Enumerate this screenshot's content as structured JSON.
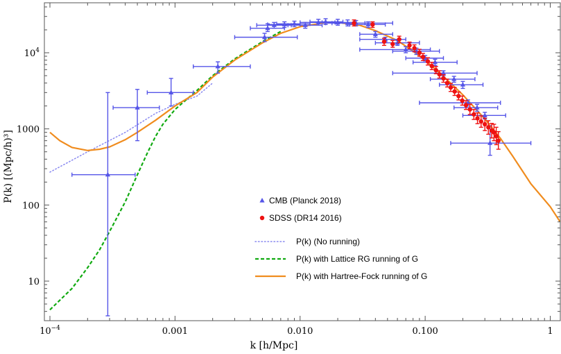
{
  "chart_data": {
    "type": "scatter",
    "xlabel": "k [h/Mpc]",
    "ylabel": "P(k) [(Mpc/h)³]",
    "xscale": "log",
    "yscale": "log",
    "xlim": [
      0.0001,
      1.2
    ],
    "ylim": [
      3.5,
      40000
    ],
    "x_ticks": [
      {
        "value": 0.0001,
        "base": "10",
        "exp": "−4"
      },
      {
        "value": 0.001,
        "label": "0.001"
      },
      {
        "value": 0.01,
        "label": "0.010"
      },
      {
        "value": 0.1,
        "label": "0.100"
      },
      {
        "value": 1,
        "label": "1"
      }
    ],
    "y_ticks": [
      {
        "value": 10,
        "label": "10"
      },
      {
        "value": 100,
        "label": "100"
      },
      {
        "value": 1000,
        "label": "1000"
      },
      {
        "value": 10000,
        "base": "10",
        "exp": "4"
      }
    ],
    "colors": {
      "cmb": "#5555e8",
      "sdss": "#ee1111",
      "no_running": "#8888f0",
      "lattice": "#11aa11",
      "hartree": "#f08c1e"
    },
    "series": [
      {
        "name": "CMB (Planck 2018)",
        "kind": "points",
        "marker": "triangle",
        "points": [
          {
            "k": 0.00029,
            "p": 250,
            "kl": 0.00015,
            "kh": 0.00048,
            "pl": 3.5,
            "ph": 3000
          },
          {
            "k": 0.0005,
            "p": 1900,
            "kl": 0.00032,
            "kh": 0.00075,
            "pl": 700,
            "ph": 3300
          },
          {
            "k": 0.00093,
            "p": 3000,
            "kl": 0.0006,
            "kh": 0.0014,
            "pl": 2000,
            "ph": 4600
          },
          {
            "k": 0.0022,
            "p": 6600,
            "kl": 0.0014,
            "kh": 0.004,
            "pl": 5400,
            "ph": 7600
          },
          {
            "k": 0.0052,
            "p": 16000,
            "kl": 0.003,
            "kh": 0.0095,
            "pl": 14000,
            "ph": 18000
          },
          {
            "k": 0.0055,
            "p": 21000,
            "kl": 0.004,
            "kh": 0.0075,
            "pl": 19000,
            "ph": 24000
          },
          {
            "k": 0.0062,
            "p": 23000,
            "kl": 0.0045,
            "kh": 0.0085,
            "pl": 21000,
            "ph": 25000
          },
          {
            "k": 0.0075,
            "p": 23500,
            "kl": 0.0055,
            "kh": 0.01,
            "pl": 21500,
            "ph": 25500
          },
          {
            "k": 0.009,
            "p": 24000,
            "kl": 0.0065,
            "kh": 0.012,
            "pl": 22000,
            "ph": 26000
          },
          {
            "k": 0.011,
            "p": 23000,
            "kl": 0.008,
            "kh": 0.015,
            "pl": 21000,
            "ph": 25000
          },
          {
            "k": 0.014,
            "p": 25000,
            "kl": 0.01,
            "kh": 0.019,
            "pl": 23000,
            "ph": 27500
          },
          {
            "k": 0.016,
            "p": 25500,
            "kl": 0.012,
            "kh": 0.022,
            "pl": 23500,
            "ph": 28000
          },
          {
            "k": 0.02,
            "p": 25000,
            "kl": 0.015,
            "kh": 0.027,
            "pl": 23000,
            "ph": 27500
          },
          {
            "k": 0.024,
            "p": 24500,
            "kl": 0.018,
            "kh": 0.033,
            "pl": 22500,
            "ph": 27000
          },
          {
            "k": 0.028,
            "p": 24500,
            "kl": 0.016,
            "kh": 0.055,
            "pl": 22500,
            "ph": 26500
          },
          {
            "k": 0.035,
            "p": 23500,
            "kl": 0.025,
            "kh": 0.048,
            "pl": 21500,
            "ph": 25500
          },
          {
            "k": 0.04,
            "p": 17500,
            "kl": 0.03,
            "kh": 0.055,
            "pl": 16000,
            "ph": 19000
          },
          {
            "k": 0.048,
            "p": 15000,
            "kl": 0.03,
            "kh": 0.07,
            "pl": 14000,
            "ph": 16000
          },
          {
            "k": 0.06,
            "p": 13500,
            "kl": 0.04,
            "kh": 0.09,
            "pl": 12500,
            "ph": 14500
          },
          {
            "k": 0.07,
            "p": 11000,
            "kl": 0.03,
            "kh": 0.11,
            "pl": 10000,
            "ph": 12000
          },
          {
            "k": 0.085,
            "p": 10500,
            "kl": 0.055,
            "kh": 0.13,
            "pl": 9500,
            "ph": 11500
          },
          {
            "k": 0.1,
            "p": 8500,
            "kl": 0.07,
            "kh": 0.14,
            "pl": 7800,
            "ph": 9200
          },
          {
            "k": 0.12,
            "p": 7500,
            "kl": 0.08,
            "kh": 0.18,
            "pl": 6800,
            "ph": 8200
          },
          {
            "k": 0.14,
            "p": 5400,
            "kl": 0.055,
            "kh": 0.26,
            "pl": 5000,
            "ph": 5800
          },
          {
            "k": 0.17,
            "p": 4500,
            "kl": 0.11,
            "kh": 0.25,
            "pl": 4100,
            "ph": 4900
          },
          {
            "k": 0.2,
            "p": 3800,
            "kl": 0.13,
            "kh": 0.29,
            "pl": 3400,
            "ph": 4200
          },
          {
            "k": 0.22,
            "p": 2200,
            "kl": 0.09,
            "kh": 0.4,
            "pl": 2000,
            "ph": 2400
          },
          {
            "k": 0.26,
            "p": 1900,
            "kl": 0.17,
            "kh": 0.38,
            "pl": 1700,
            "ph": 2100
          },
          {
            "k": 0.3,
            "p": 1500,
            "kl": 0.2,
            "kh": 0.44,
            "pl": 1350,
            "ph": 1650
          },
          {
            "k": 0.33,
            "p": 650,
            "kl": 0.16,
            "kh": 0.7,
            "pl": 450,
            "ph": 1100
          }
        ]
      },
      {
        "name": "SDSS (DR14 2016)",
        "kind": "points",
        "marker": "circle",
        "points": [
          {
            "k": 0.027,
            "p": 24500,
            "pl": 22500,
            "ph": 27000
          },
          {
            "k": 0.038,
            "p": 23500,
            "pl": 21500,
            "ph": 25500
          },
          {
            "k": 0.047,
            "p": 14000,
            "pl": 12500,
            "ph": 15500
          },
          {
            "k": 0.055,
            "p": 13000,
            "pl": 11800,
            "ph": 14500
          },
          {
            "k": 0.062,
            "p": 15000,
            "pl": 13500,
            "ph": 16500
          },
          {
            "k": 0.075,
            "p": 12500,
            "pl": 11300,
            "ph": 13800
          },
          {
            "k": 0.082,
            "p": 11500,
            "pl": 10300,
            "ph": 12700
          },
          {
            "k": 0.09,
            "p": 10000,
            "pl": 9000,
            "ph": 11100
          },
          {
            "k": 0.096,
            "p": 8800,
            "pl": 7900,
            "ph": 9800
          },
          {
            "k": 0.105,
            "p": 7700,
            "pl": 6900,
            "ph": 8600
          },
          {
            "k": 0.113,
            "p": 6700,
            "pl": 6000,
            "ph": 7500
          },
          {
            "k": 0.122,
            "p": 5900,
            "pl": 5300,
            "ph": 6600
          },
          {
            "k": 0.13,
            "p": 5200,
            "pl": 4650,
            "ph": 5800
          },
          {
            "k": 0.14,
            "p": 4600,
            "pl": 4100,
            "ph": 5150
          },
          {
            "k": 0.15,
            "p": 4000,
            "pl": 3550,
            "ph": 4500
          },
          {
            "k": 0.16,
            "p": 3500,
            "pl": 3100,
            "ph": 3950
          },
          {
            "k": 0.172,
            "p": 3100,
            "pl": 2750,
            "ph": 3500
          },
          {
            "k": 0.185,
            "p": 2700,
            "pl": 2400,
            "ph": 3050
          },
          {
            "k": 0.198,
            "p": 2350,
            "pl": 2050,
            "ph": 2700
          },
          {
            "k": 0.212,
            "p": 2050,
            "pl": 1800,
            "ph": 2350
          },
          {
            "k": 0.228,
            "p": 1800,
            "pl": 1550,
            "ph": 2100
          },
          {
            "k": 0.245,
            "p": 1550,
            "pl": 1330,
            "ph": 1800
          },
          {
            "k": 0.262,
            "p": 1380,
            "pl": 1170,
            "ph": 1620
          },
          {
            "k": 0.28,
            "p": 1250,
            "pl": 1050,
            "ph": 1480
          },
          {
            "k": 0.3,
            "p": 1150,
            "pl": 950,
            "ph": 1380
          },
          {
            "k": 0.32,
            "p": 1050,
            "pl": 850,
            "ph": 1280
          },
          {
            "k": 0.34,
            "p": 950,
            "pl": 760,
            "ph": 1180
          },
          {
            "k": 0.355,
            "p": 900,
            "pl": 700,
            "ph": 1150
          },
          {
            "k": 0.37,
            "p": 800,
            "pl": 620,
            "ph": 1050
          },
          {
            "k": 0.385,
            "p": 700,
            "pl": 540,
            "ph": 920
          }
        ]
      },
      {
        "name": "P(k) (No running)",
        "kind": "line",
        "style": "dotted",
        "points": [
          {
            "k": 0.0001,
            "p": 270
          },
          {
            "k": 0.0002,
            "p": 500
          },
          {
            "k": 0.0004,
            "p": 900
          },
          {
            "k": 0.0007,
            "p": 1600
          },
          {
            "k": 0.001,
            "p": 2100
          },
          {
            "k": 0.0015,
            "p": 2700
          },
          {
            "k": 0.002,
            "p": 4000
          }
        ]
      },
      {
        "name": "P(k) with Lattice RG running of G",
        "kind": "line",
        "style": "dashed",
        "points": [
          {
            "k": 0.0001,
            "p": 4.2
          },
          {
            "k": 0.00015,
            "p": 8
          },
          {
            "k": 0.0002,
            "p": 15
          },
          {
            "k": 0.00025,
            "p": 26
          },
          {
            "k": 0.0003,
            "p": 45
          },
          {
            "k": 0.0004,
            "p": 110
          },
          {
            "k": 0.0005,
            "p": 250
          },
          {
            "k": 0.0006,
            "p": 480
          },
          {
            "k": 0.0007,
            "p": 800
          },
          {
            "k": 0.0008,
            "p": 1150
          },
          {
            "k": 0.001,
            "p": 1800
          },
          {
            "k": 0.0015,
            "p": 3200
          },
          {
            "k": 0.002,
            "p": 5000
          },
          {
            "k": 0.003,
            "p": 8300
          },
          {
            "k": 0.005,
            "p": 14000
          },
          {
            "k": 0.007,
            "p": 19000
          }
        ]
      },
      {
        "name": "P(k) with Hartree-Fock running of G",
        "kind": "line",
        "style": "solid",
        "points": [
          {
            "k": 0.0001,
            "p": 900
          },
          {
            "k": 0.00012,
            "p": 700
          },
          {
            "k": 0.00015,
            "p": 570
          },
          {
            "k": 0.0002,
            "p": 520
          },
          {
            "k": 0.00025,
            "p": 540
          },
          {
            "k": 0.0003,
            "p": 580
          },
          {
            "k": 0.0004,
            "p": 720
          },
          {
            "k": 0.0005,
            "p": 900
          },
          {
            "k": 0.0007,
            "p": 1300
          },
          {
            "k": 0.001,
            "p": 2000
          },
          {
            "k": 0.0015,
            "p": 3000
          },
          {
            "k": 0.002,
            "p": 4800
          },
          {
            "k": 0.003,
            "p": 8000
          },
          {
            "k": 0.005,
            "p": 13500
          },
          {
            "k": 0.007,
            "p": 18000
          },
          {
            "k": 0.01,
            "p": 22000
          },
          {
            "k": 0.015,
            "p": 24500
          },
          {
            "k": 0.02,
            "p": 25000
          },
          {
            "k": 0.03,
            "p": 23000
          },
          {
            "k": 0.04,
            "p": 19500
          },
          {
            "k": 0.06,
            "p": 14500
          },
          {
            "k": 0.08,
            "p": 10500
          },
          {
            "k": 0.1,
            "p": 8000
          },
          {
            "k": 0.15,
            "p": 4400
          },
          {
            "k": 0.2,
            "p": 2800
          },
          {
            "k": 0.3,
            "p": 1350
          },
          {
            "k": 0.4,
            "p": 750
          },
          {
            "k": 0.5,
            "p": 440
          },
          {
            "k": 0.7,
            "p": 190
          },
          {
            "k": 1.0,
            "p": 95
          },
          {
            "k": 1.2,
            "p": 60
          }
        ]
      }
    ]
  }
}
